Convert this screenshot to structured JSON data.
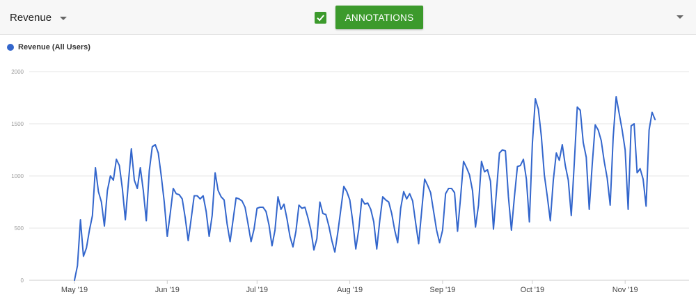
{
  "toolbar": {
    "metric_label": "Revenue",
    "annotations_label": "ANNOTATIONS",
    "annotations_checked": true,
    "accent_color": "#3c9a2c"
  },
  "icons": {
    "metric_dropdown": "caret-down-icon",
    "checkbox": "check-icon",
    "collapse": "caret-down-icon"
  },
  "chart_data": {
    "type": "line",
    "title": "",
    "xlabel": "",
    "ylabel": "",
    "ylim": [
      0,
      2000
    ],
    "yticks": [
      {
        "value": 0,
        "label": "0"
      },
      {
        "value": 500,
        "label": "500"
      },
      {
        "value": 1000,
        "label": "1000"
      },
      {
        "value": 1500,
        "label": "1500"
      },
      {
        "value": 2000,
        "label": "2000"
      }
    ],
    "xlim": [
      0,
      203
    ],
    "xticks": [
      {
        "day": 0,
        "label": "May '19"
      },
      {
        "day": 31,
        "label": "Jun '19"
      },
      {
        "day": 61,
        "label": "Jul '19"
      },
      {
        "day": 92,
        "label": "Aug '19"
      },
      {
        "day": 123,
        "label": "Sep '19"
      },
      {
        "day": 153,
        "label": "Oct '19"
      },
      {
        "day": 184,
        "label": "Nov '19"
      }
    ],
    "grid": true,
    "legend_position": "top-left",
    "series": [
      {
        "name": "Revenue (All Users)",
        "color": "#3366cc",
        "start": "2019-05-01",
        "values": [
          0,
          140,
          580,
          230,
          310,
          480,
          620,
          1080,
          850,
          750,
          520,
          860,
          1000,
          960,
          1160,
          1100,
          880,
          580,
          930,
          1260,
          960,
          880,
          1080,
          860,
          570,
          1050,
          1280,
          1300,
          1220,
          1000,
          750,
          420,
          640,
          880,
          830,
          820,
          780,
          600,
          380,
          590,
          810,
          810,
          780,
          810,
          660,
          420,
          620,
          1030,
          860,
          800,
          770,
          540,
          370,
          580,
          790,
          780,
          760,
          700,
          540,
          370,
          490,
          690,
          700,
          700,
          660,
          530,
          330,
          480,
          800,
          680,
          730,
          590,
          420,
          320,
          470,
          720,
          690,
          700,
          600,
          480,
          290,
          400,
          750,
          640,
          630,
          520,
          380,
          270,
          460,
          680,
          900,
          850,
          770,
          560,
          300,
          490,
          780,
          730,
          740,
          680,
          560,
          300,
          570,
          800,
          770,
          750,
          640,
          480,
          360,
          690,
          850,
          780,
          830,
          760,
          550,
          350,
          660,
          970,
          910,
          840,
          660,
          480,
          360,
          480,
          830,
          880,
          880,
          840,
          470,
          790,
          1140,
          1080,
          1010,
          860,
          510,
          720,
          1140,
          1040,
          1060,
          950,
          490,
          850,
          1220,
          1250,
          1240,
          800,
          480,
          800,
          1090,
          1100,
          1160,
          970,
          560,
          1310,
          1740,
          1640,
          1380,
          1010,
          800,
          570,
          960,
          1220,
          1150,
          1300,
          1100,
          960,
          620,
          1120,
          1660,
          1630,
          1320,
          1180,
          680,
          1110,
          1490,
          1440,
          1340,
          1140,
          980,
          720,
          1370,
          1760,
          1600,
          1440,
          1250,
          680,
          1480,
          1500,
          1030,
          1070,
          970,
          710,
          1440,
          1610,
          1540
        ]
      }
    ]
  }
}
